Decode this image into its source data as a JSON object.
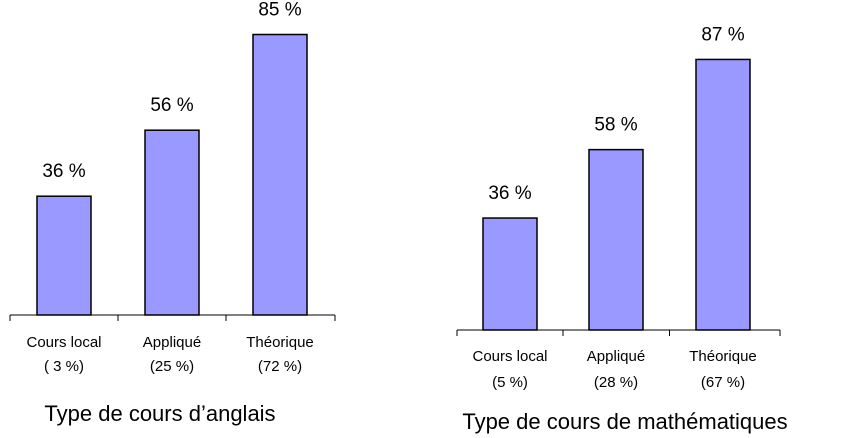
{
  "chart_data": [
    {
      "type": "bar",
      "title": "Type de cours d’anglais",
      "categories": [
        "Cours local",
        "Appliqué",
        "Théorique"
      ],
      "category_notes": [
        "( 3 %)",
        "(25 %)",
        "(72 %)"
      ],
      "values": [
        36,
        56,
        85
      ],
      "value_labels": [
        "36 %",
        "56 %",
        "85 %"
      ],
      "color": "#9999ff"
    },
    {
      "type": "bar",
      "title": "Type de cours de mathématiques",
      "categories": [
        "Cours local",
        "Appliqué",
        "Théorique"
      ],
      "category_notes": [
        "(5 %)",
        "(28 %)",
        "(67 %)"
      ],
      "values": [
        36,
        58,
        87
      ],
      "value_labels": [
        "36 %",
        "58 %",
        "87 %"
      ],
      "color": "#9999ff"
    }
  ]
}
